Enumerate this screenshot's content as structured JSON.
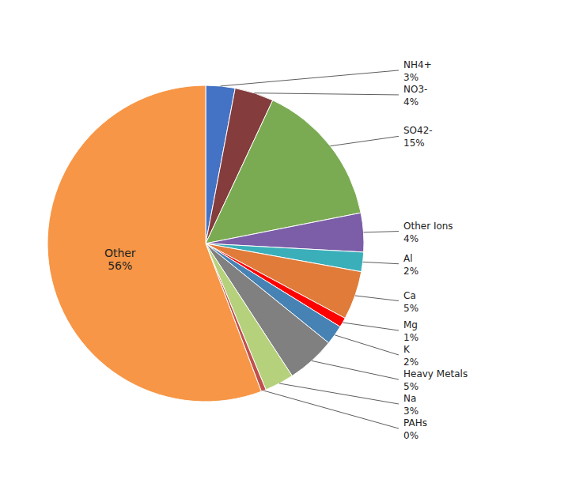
{
  "chart_data": {
    "type": "pie",
    "categories": [
      "NH4+",
      "NO3-",
      "SO42-",
      "Other Ions",
      "Al",
      "Ca",
      "Mg",
      "K",
      "Heavy Metals",
      "Na",
      "PAHs",
      "Other"
    ],
    "values": [
      3,
      4,
      15,
      4,
      2,
      5,
      1,
      2,
      5,
      3,
      0.5,
      56
    ],
    "value_labels": [
      "3%",
      "4%",
      "15%",
      "4%",
      "2%",
      "5%",
      "1%",
      "2%",
      "5%",
      "3%",
      "0%",
      "56%"
    ],
    "colors": [
      "#4472C4",
      "#843C3C",
      "#7AAB52",
      "#7B5EA7",
      "#3AAFB9",
      "#E07B39",
      "#FF0000",
      "#4682B4",
      "#808080",
      "#B5D17B",
      "#C0504D",
      "#F79646"
    ],
    "data_labels": true
  }
}
